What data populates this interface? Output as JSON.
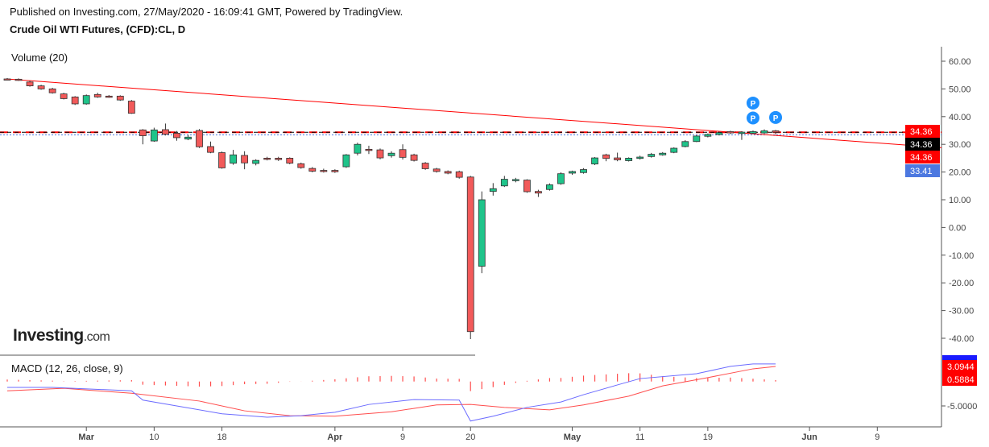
{
  "header": {
    "published": "Published on Investing.com, 27/May/2020 - 16:09:41 GMT, Powered by TradingView.",
    "title": "Crude Oil WTI Futures, (CFD):CL, D"
  },
  "indicators": {
    "volume": "Volume (20)",
    "macd": "MACD (12, 26, close, 9)"
  },
  "logo": {
    "main": "Investing",
    "suffix": ".com"
  },
  "colors": {
    "up": "#1fc48a",
    "down": "#f25a5a",
    "trendline": "#ff0000",
    "macd": "#6b6bff",
    "signal": "#ff4d4d",
    "histogram": "#ff4d4d"
  },
  "chart_data": {
    "type": "candlestick",
    "ylim": [
      -45,
      65
    ],
    "y_ticks": [
      "60.00",
      "50.00",
      "40.00",
      "30.00",
      "20.00",
      "10.00",
      "0.00",
      "-10.00",
      "-20.00",
      "-30.00",
      "-40.00"
    ],
    "y_tick_values": [
      60,
      50,
      40,
      30,
      20,
      10,
      0,
      -10,
      -20,
      -30,
      -40
    ],
    "x_ticks": [
      {
        "label": "Mar",
        "date": "2020-03-02",
        "bold": true
      },
      {
        "label": "10",
        "date": "2020-03-10"
      },
      {
        "label": "18",
        "date": "2020-03-18"
      },
      {
        "label": "Apr",
        "date": "2020-04-01",
        "bold": true
      },
      {
        "label": "9",
        "date": "2020-04-09"
      },
      {
        "label": "20",
        "date": "2020-04-20"
      },
      {
        "label": "May",
        "date": "2020-05-01",
        "bold": true
      },
      {
        "label": "11",
        "date": "2020-05-11"
      },
      {
        "label": "19",
        "date": "2020-05-19"
      },
      {
        "label": "Jun",
        "date": "2020-06-01",
        "bold": true
      },
      {
        "label": "9",
        "date": "2020-06-09"
      }
    ],
    "candles": [
      [
        "2020-02-20",
        53.6,
        53.4,
        53.9,
        53.2
      ],
      [
        "2020-02-21",
        53.5,
        53.1,
        53.8,
        52.9
      ],
      [
        "2020-02-24",
        52.5,
        51.1,
        52.9,
        50.8
      ],
      [
        "2020-02-25",
        51.1,
        50.0,
        51.5,
        49.7
      ],
      [
        "2020-02-26",
        50.0,
        48.6,
        50.4,
        48.3
      ],
      [
        "2020-02-27",
        48.2,
        46.5,
        48.6,
        46.2
      ],
      [
        "2020-02-28",
        47.1,
        44.6,
        47.4,
        44.2
      ],
      [
        "2020-03-02",
        44.6,
        47.6,
        48.0,
        44.3
      ],
      [
        "2020-03-03",
        48.0,
        47.1,
        48.6,
        46.8
      ],
      [
        "2020-03-04",
        47.4,
        47.1,
        47.8,
        46.8
      ],
      [
        "2020-03-05",
        47.4,
        46.0,
        47.7,
        45.7
      ],
      [
        "2020-03-06",
        45.6,
        41.2,
        46.0,
        41.0
      ],
      [
        "2020-03-09",
        35.2,
        33.1,
        35.5,
        30.0
      ],
      [
        "2020-03-10",
        31.2,
        35.2,
        36.0,
        30.9
      ],
      [
        "2020-03-11",
        35.3,
        33.6,
        37.5,
        33.2
      ],
      [
        "2020-03-12",
        34.0,
        32.4,
        34.8,
        31.3
      ],
      [
        "2020-03-13",
        31.9,
        32.6,
        33.5,
        31.5
      ],
      [
        "2020-03-16",
        35.0,
        29.1,
        35.5,
        28.7
      ],
      [
        "2020-03-17",
        29.2,
        27.1,
        31.0,
        26.8
      ],
      [
        "2020-03-18",
        27.0,
        21.5,
        27.4,
        21.2
      ],
      [
        "2020-03-19",
        23.2,
        26.2,
        28.0,
        22.6
      ],
      [
        "2020-03-20",
        26.0,
        23.3,
        27.5,
        21.0
      ],
      [
        "2020-03-23",
        23.1,
        24.2,
        24.6,
        22.4
      ],
      [
        "2020-03-24",
        25.0,
        24.8,
        25.5,
        24.2
      ],
      [
        "2020-03-25",
        25.0,
        24.5,
        25.5,
        24.0
      ],
      [
        "2020-03-26",
        25.0,
        23.2,
        25.3,
        22.8
      ],
      [
        "2020-03-27",
        23.0,
        21.6,
        23.4,
        21.2
      ],
      [
        "2020-03-30",
        21.3,
        20.3,
        21.8,
        19.9
      ],
      [
        "2020-03-31",
        20.6,
        20.2,
        21.2,
        19.8
      ],
      [
        "2020-04-01",
        20.6,
        20.1,
        21.0,
        19.7
      ],
      [
        "2020-04-02",
        21.9,
        26.2,
        26.5,
        21.5
      ],
      [
        "2020-04-03",
        26.8,
        30.0,
        30.6,
        26.0
      ],
      [
        "2020-04-06",
        28.2,
        28.0,
        29.5,
        26.5
      ],
      [
        "2020-04-07",
        28.0,
        25.1,
        28.5,
        24.6
      ],
      [
        "2020-04-08",
        25.9,
        26.8,
        27.5,
        25.2
      ],
      [
        "2020-04-09",
        28.1,
        25.3,
        30.0,
        24.5
      ],
      [
        "2020-04-13",
        26.2,
        24.2,
        26.6,
        23.8
      ],
      [
        "2020-04-14",
        23.2,
        21.2,
        23.6,
        20.8
      ],
      [
        "2020-04-15",
        21.1,
        20.2,
        21.5,
        19.8
      ],
      [
        "2020-04-16",
        20.2,
        19.6,
        20.6,
        19.2
      ],
      [
        "2020-04-17",
        20.1,
        18.1,
        20.5,
        17.6
      ],
      [
        "2020-04-20",
        18.2,
        -37.6,
        18.6,
        -40.3
      ],
      [
        "2020-04-21",
        -14.0,
        10.0,
        13.0,
        -16.5
      ],
      [
        "2020-04-22",
        13.0,
        14.0,
        16.0,
        11.5
      ],
      [
        "2020-04-23",
        15.0,
        17.4,
        18.6,
        14.6
      ],
      [
        "2020-04-24",
        16.9,
        17.3,
        17.9,
        16.3
      ],
      [
        "2020-04-27",
        17.1,
        12.9,
        17.4,
        12.5
      ],
      [
        "2020-04-28",
        13.0,
        12.4,
        13.6,
        11.0
      ],
      [
        "2020-04-29",
        13.7,
        15.4,
        15.9,
        13.3
      ],
      [
        "2020-04-30",
        15.8,
        19.4,
        19.9,
        15.4
      ],
      [
        "2020-05-01",
        19.6,
        20.2,
        20.5,
        19.0
      ],
      [
        "2020-05-04",
        19.8,
        20.9,
        21.4,
        19.4
      ],
      [
        "2020-05-05",
        22.9,
        25.1,
        25.4,
        22.5
      ],
      [
        "2020-05-06",
        26.2,
        24.9,
        26.6,
        23.9
      ],
      [
        "2020-05-07",
        25.1,
        24.4,
        27.0,
        23.9
      ],
      [
        "2020-05-08",
        24.1,
        25.0,
        25.3,
        23.8
      ],
      [
        "2020-05-11",
        24.9,
        25.4,
        25.9,
        24.5
      ],
      [
        "2020-05-12",
        25.6,
        26.4,
        26.9,
        25.2
      ],
      [
        "2020-05-13",
        26.2,
        26.8,
        27.2,
        25.9
      ],
      [
        "2020-05-14",
        27.1,
        28.6,
        28.9,
        26.8
      ],
      [
        "2020-05-15",
        29.2,
        31.0,
        31.5,
        28.9
      ],
      [
        "2020-05-18",
        31.0,
        33.0,
        33.3,
        30.8
      ],
      [
        "2020-05-19",
        32.9,
        33.6,
        33.9,
        32.5
      ],
      [
        "2020-05-20",
        33.5,
        34.2,
        34.5,
        33.2
      ],
      [
        "2020-05-21",
        34.6,
        34.1,
        34.9,
        33.7
      ],
      [
        "2020-05-22",
        33.9,
        34.4,
        34.7,
        31.6
      ],
      [
        "2020-05-25",
        34.0,
        34.6,
        35.0,
        33.7
      ],
      [
        "2020-05-26",
        34.1,
        34.9,
        35.4,
        33.8
      ],
      [
        "2020-05-27",
        34.9,
        34.36,
        35.2,
        33.6
      ]
    ],
    "price_labels": [
      {
        "value": "34.36",
        "bg": "#ff0000"
      },
      {
        "value": "34.36",
        "bg": "#000000"
      },
      {
        "value": "34.36",
        "bg": "#ff0000"
      },
      {
        "value": "33.41",
        "bg": "#4c78e0"
      }
    ],
    "horizontal_lines": [
      {
        "value": 34.36,
        "style": "dashed",
        "color": "#ff0000"
      },
      {
        "value": 34.36,
        "style": "dashed",
        "color": "#000000"
      },
      {
        "value": 33.41,
        "style": "dotted",
        "color": "#4c78e0"
      }
    ],
    "trendline": [
      {
        "date": "2020-02-20",
        "value": 53.6
      },
      {
        "date": "2020-06-13",
        "value": 29.6
      }
    ],
    "markers": [
      {
        "label": "P",
        "date": "2020-05-25",
        "value": 44.9
      },
      {
        "label": "P",
        "date": "2020-05-25",
        "value": 39.5
      },
      {
        "label": "P",
        "date": "2020-05-27",
        "value": 39.7
      }
    ],
    "macd_panel": {
      "ylim": [
        -8.5,
        5.5
      ],
      "y_tick": "-5.0000",
      "y_tick_value": -5,
      "labels": [
        {
          "value": "3.0944",
          "bg": "#ff0000"
        },
        {
          "value": "0.5884",
          "bg": "#ff0000"
        }
      ],
      "macd": [
        [
          "2020-02-20",
          -1.2
        ],
        [
          "2020-02-26",
          -1.2
        ],
        [
          "2020-03-06",
          -1.9
        ],
        [
          "2020-03-09",
          -3.8
        ],
        [
          "2020-03-18",
          -6.6
        ],
        [
          "2020-03-24",
          -7.3
        ],
        [
          "2020-03-27",
          -7.0
        ],
        [
          "2020-04-01",
          -6.3
        ],
        [
          "2020-04-06",
          -4.7
        ],
        [
          "2020-04-13",
          -3.7
        ],
        [
          "2020-04-17",
          -3.8
        ],
        [
          "2020-04-20",
          -8.1
        ],
        [
          "2020-04-22",
          -7.1
        ],
        [
          "2020-04-27",
          -5.3
        ],
        [
          "2020-04-30",
          -4.2
        ],
        [
          "2020-05-04",
          -2.7
        ],
        [
          "2020-05-07",
          -0.7
        ],
        [
          "2020-05-11",
          0.6
        ],
        [
          "2020-05-18",
          1.6
        ],
        [
          "2020-05-21",
          3.1
        ],
        [
          "2020-05-25",
          3.6
        ],
        [
          "2020-05-27",
          3.6
        ]
      ],
      "signal": [
        [
          "2020-02-20",
          -1.9
        ],
        [
          "2020-02-27",
          -1.4
        ],
        [
          "2020-03-06",
          -2.4
        ],
        [
          "2020-03-16",
          -4.0
        ],
        [
          "2020-03-20",
          -6.0
        ],
        [
          "2020-03-26",
          -7.0
        ],
        [
          "2020-04-01",
          -7.1
        ],
        [
          "2020-04-08",
          -6.2
        ],
        [
          "2020-04-15",
          -4.8
        ],
        [
          "2020-04-20",
          -4.7
        ],
        [
          "2020-04-23",
          -5.3
        ],
        [
          "2020-04-29",
          -5.8
        ],
        [
          "2020-05-04",
          -4.8
        ],
        [
          "2020-05-08",
          -3.0
        ],
        [
          "2020-05-13",
          -0.9
        ],
        [
          "2020-05-19",
          0.8
        ],
        [
          "2020-05-25",
          2.6
        ],
        [
          "2020-05-27",
          3.09
        ]
      ]
    }
  }
}
